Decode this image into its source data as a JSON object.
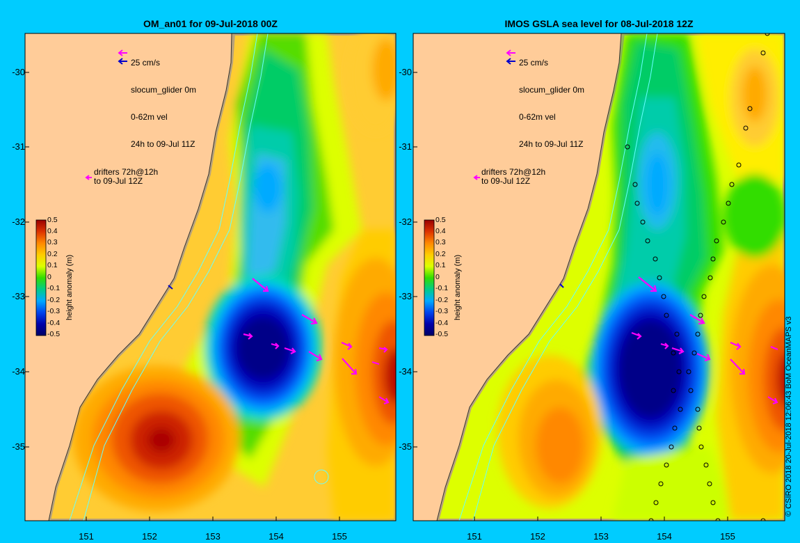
{
  "panels": [
    {
      "title": "OM_an01 for 09-Jul-2018 00Z",
      "legend": {
        "scale": "25 cm/s",
        "glider": "slocum_glider 0m",
        "vel": "0-62m vel",
        "window": "24h to 09-Jul 11Z"
      },
      "drifters": {
        "line1": "drifters 72h@12h",
        "line2": "to 09-Jul 12Z"
      }
    },
    {
      "title": "IMOS GSLA sea level  for 08-Jul-2018 12Z",
      "legend": {
        "scale": "25 cm/s",
        "glider": "slocum_glider 0m",
        "vel": "0-62m vel",
        "window": "24h to 09-Jul 11Z"
      },
      "drifters": {
        "line1": "drifters 72h@12h",
        "line2": "to 09-Jul 12Z"
      }
    }
  ],
  "axes": {
    "y_ticks": [
      "-30",
      "-31",
      "-32",
      "-33",
      "-34",
      "-35"
    ],
    "x_ticks": [
      "151",
      "152",
      "153",
      "154",
      "155"
    ]
  },
  "colorbar": {
    "title": "height anomaly (m)",
    "ticks": [
      "0.5",
      "0.4",
      "0.3",
      "0.2",
      "0.1",
      "0",
      "-0.1",
      "-0.2",
      "-0.3",
      "-0.4",
      "-0.5"
    ]
  },
  "credit": "© CSIRO 2018   20-Jul-2018 12:06:43 BoM OceanMAPS v3",
  "colors": {
    "frame": "#00ccff",
    "land": "#ffcc99",
    "shelf": "#b8a27a",
    "arrow": "#ff00ff",
    "vel_arrow": "#0000cc",
    "contour": "#66ffff"
  }
}
